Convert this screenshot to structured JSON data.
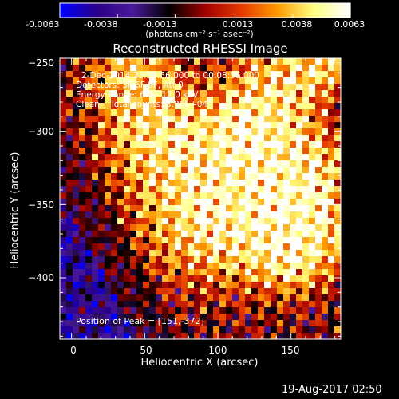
{
  "colors": {
    "background": "#000000",
    "foreground": "#ffffff",
    "colormap": [
      "#0000ff",
      "#2a0088",
      "#4a1a9a",
      "#000000",
      "#a00000",
      "#e63a00",
      "#ff9a00",
      "#ffff80",
      "#ffffff"
    ]
  },
  "colorbar": {
    "ticks": [
      "-0.0063",
      "-0.0038",
      "-0.0013",
      "0.0013",
      "0.0038",
      "0.0063"
    ],
    "range": [
      -0.0063,
      0.0063
    ],
    "unit_label": "(photons cm⁻² s⁻¹ asec⁻²)"
  },
  "chart_data": {
    "type": "heatmap",
    "title": "Reconstructed RHESSI Image",
    "xlabel": "Heliocentric X (arcsec)",
    "ylabel": "Heliocentric Y (arcsec)",
    "xlim": [
      -8,
      184
    ],
    "ylim": [
      -442,
      -250
    ],
    "x_ticks": [
      0,
      50,
      100,
      150
    ],
    "y_ticks": [
      -250,
      -300,
      -350,
      -400
    ],
    "x_tick_labels": [
      "0",
      "50",
      "100",
      "150"
    ],
    "y_tick_labels": [
      "−250",
      "−300",
      "−350",
      "−400"
    ],
    "peak": [
      151,
      -372
    ],
    "info_lines": [
      "2-Dec-2014 23:58:56.000 to 00:08:56.000",
      "Detectors: 3F 6F 9F, Att 0",
      "Energy Range: 6.0 - 12.0 keV",
      "Clean    Total counts: 3.96E+04"
    ],
    "peak_label": "Position of Peak = [151,-372]"
  },
  "footer": {
    "timestamp": "19-Aug-2017 02:50"
  }
}
